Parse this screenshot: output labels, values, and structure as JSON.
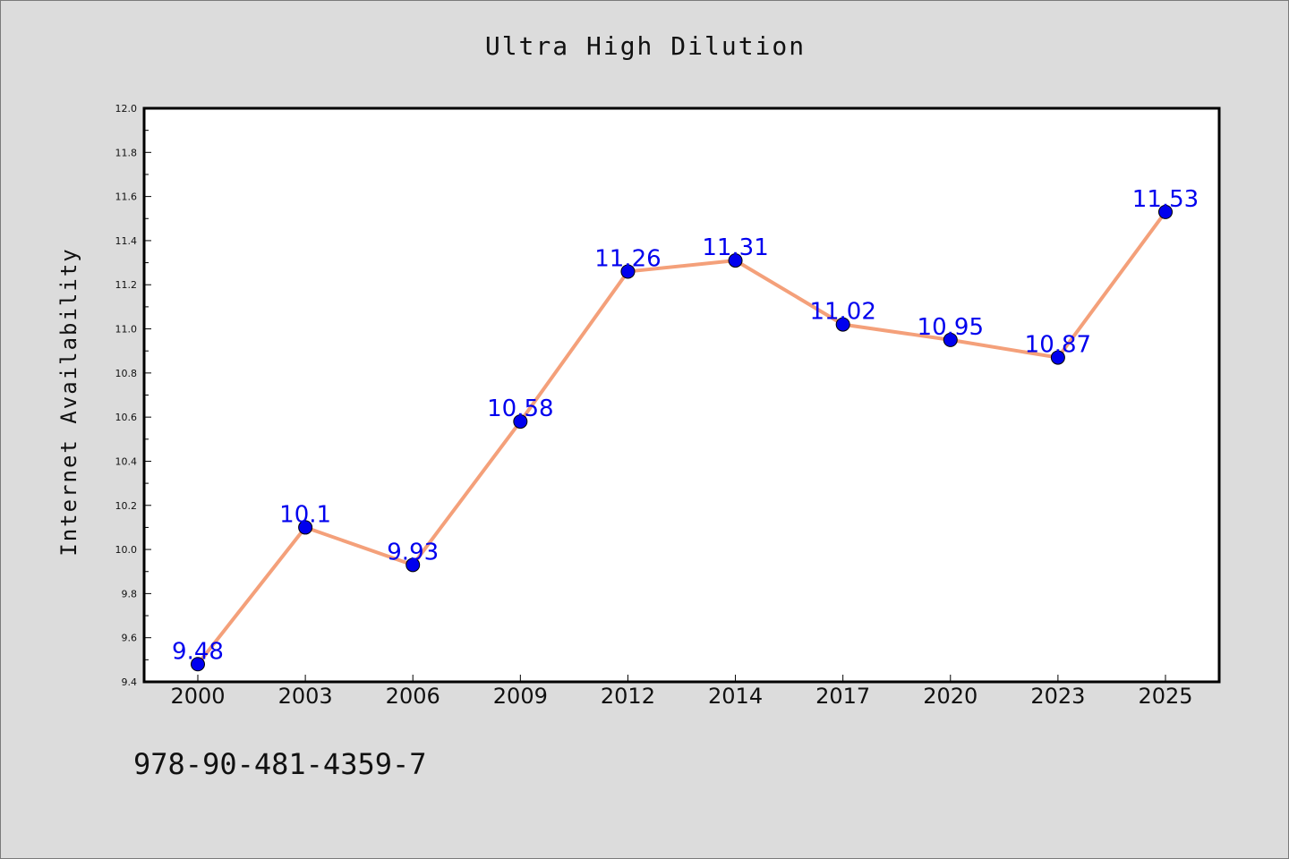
{
  "chart_data": {
    "type": "line",
    "title": "Ultra High Dilution",
    "xlabel": "",
    "ylabel": "Internet Availability",
    "categories": [
      "2000",
      "2003",
      "2006",
      "2009",
      "2012",
      "2014",
      "2017",
      "2020",
      "2023",
      "2025"
    ],
    "series": [
      {
        "values": [
          9.48,
          10.1,
          9.93,
          10.58,
          11.26,
          11.31,
          11.02,
          10.95,
          10.87,
          11.53
        ],
        "labels": [
          "9.48",
          "10.1",
          "9.93",
          "10.58",
          "11.26",
          "11.31",
          "11.02",
          "10.95",
          "10.87",
          "11.53"
        ],
        "line_color": "#f4a07a",
        "marker_color": "#0000ee"
      }
    ],
    "ylim": [
      9.4,
      12.0
    ],
    "yticks": [
      "9.4",
      "9.6",
      "9.8",
      "10.0",
      "10.2",
      "10.4",
      "10.6",
      "10.8",
      "11.0",
      "11.2",
      "11.4",
      "11.6",
      "11.8",
      "12.0"
    ],
    "grid": false,
    "legend": "none",
    "label_color": "#0000ee"
  },
  "footer": {
    "isbn": "978-90-481-4359-7"
  },
  "colors": {
    "background": "#dcdcdc",
    "plot_background": "#ffffff"
  }
}
